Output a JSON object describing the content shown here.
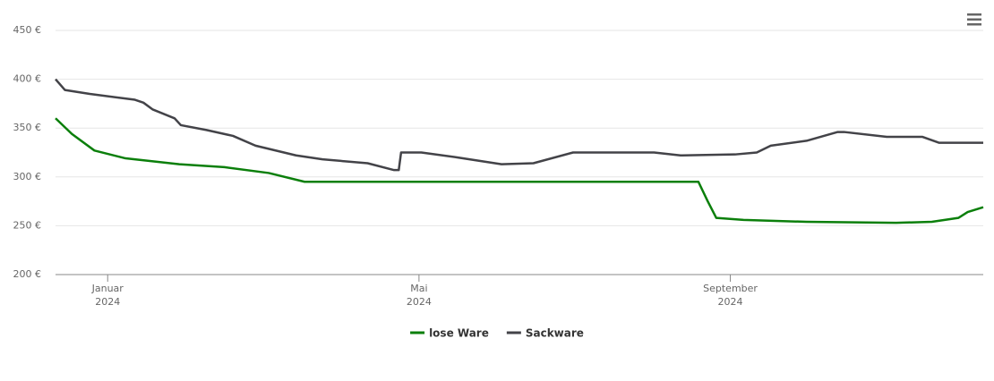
{
  "chart_data": {
    "type": "line",
    "xlim": [
      0.33,
      12.25
    ],
    "xticks": [
      {
        "value": 1,
        "label": "Januar 2024"
      },
      {
        "value": 5,
        "label": "Mai 2024"
      },
      {
        "value": 9,
        "label": "September 2024"
      }
    ],
    "ylim": [
      200,
      450
    ],
    "yticks": [
      {
        "value": 200,
        "label": "200 €"
      },
      {
        "value": 250,
        "label": "250 €"
      },
      {
        "value": 300,
        "label": "300 €"
      },
      {
        "value": 350,
        "label": "350 €"
      },
      {
        "value": 400,
        "label": "400 €"
      },
      {
        "value": 450,
        "label": "450 €"
      }
    ],
    "grid": true,
    "legend": "bottom",
    "series": [
      {
        "name": "lose Ware",
        "color": "#0b7f0b",
        "x": [
          0.33,
          0.54,
          0.83,
          1.23,
          1.92,
          2.5,
          3.07,
          3.53,
          4.22,
          8.59,
          8.71,
          8.82,
          9.17,
          9.98,
          11.13,
          11.59,
          11.93,
          12.05,
          12.25
        ],
        "values": [
          360,
          344,
          327,
          319,
          313,
          310,
          304,
          295,
          295,
          295,
          275,
          258,
          256,
          254,
          253,
          254,
          258,
          264,
          269
        ]
      },
      {
        "name": "Sackware",
        "color": "#434348",
        "x": [
          0.33,
          0.45,
          0.77,
          1.35,
          1.46,
          1.58,
          1.86,
          1.94,
          2.27,
          2.61,
          2.9,
          3.42,
          3.76,
          4.34,
          4.68,
          4.74,
          4.77,
          5.03,
          5.49,
          6.06,
          6.47,
          6.98,
          8.02,
          8.36,
          9.06,
          9.34,
          9.52,
          9.98,
          10.38,
          10.46,
          11.01,
          11.47,
          11.68,
          12.25
        ],
        "values": [
          400,
          389,
          385,
          379,
          376,
          369,
          360,
          353,
          348,
          342,
          332,
          322,
          318,
          314,
          307,
          307,
          325,
          325,
          320,
          313,
          314,
          325,
          325,
          322,
          323,
          325,
          332,
          337,
          346,
          346,
          341,
          341,
          335,
          335
        ]
      }
    ]
  }
}
